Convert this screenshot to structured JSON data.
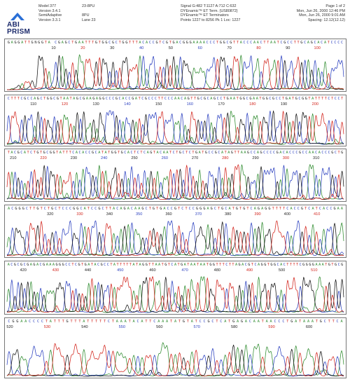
{
  "header": {
    "logo_text_top": "ABI",
    "logo_text_bottom": "PRISM",
    "instrument": {
      "model": "Model 377",
      "version": "Version 3.4.1",
      "analysis": "SemiAdaptive",
      "analysis_version": "Version 3.3.1"
    },
    "sample": {
      "name": "23-8PU",
      "id": "8PU",
      "lane": "Lane 23"
    },
    "signal": {
      "signal": "Signal G:482 T:1127 A:712 C:632",
      "chemistry": "DYEnamic™ ET Term. {US80872}",
      "terminators": "DYEnamic™ ET Terminators",
      "points": "Points 1227 to 8256  Pk 1 Loc: 1227"
    },
    "run": {
      "page": "Page 1 of 2",
      "date1": "Mon, Jun 26, 2000  12:46 PM",
      "date2": "Mon, Jun 26, 2000  9:01 AM",
      "spacing": "Spacing: 12.12(12.12)"
    }
  },
  "colors": {
    "A": "#2e8b2e",
    "C": "#2a3fbf",
    "G": "#111111",
    "T": "#d2241c",
    "frame": "#777777"
  },
  "panels": [
    {
      "sequence": "GAGGATTGNGGTA CGAGCTGAATTTGTGGCGCTGGTTTACACCGTCGTGACGGGAAAACCCTGGCGTTACCCAACTTAATCGCCTTGCAGCACATCCCC",
      "ticks": [
        10,
        20,
        30,
        40,
        50,
        60,
        70,
        80,
        90,
        100
      ],
      "first_tick_offset": 0.13
    },
    {
      "sequence": "CTTTCGCCAGCTGGCGTAATAGCGAAGAGGCCCGCACCGATCGCCCTTCCCAACAGTTGCGCAGCCTGAATGGCGAATGGCGCCTGATGCGGTATTTTCTCCT",
      "ticks": [
        110,
        120,
        130,
        140,
        150,
        160,
        170,
        180,
        190,
        200
      ],
      "first_tick_offset": 0.07
    },
    {
      "sequence": "TACGCATCTGTGCGGTATTTCACACCGCATATGGTGCACTCTCAGTACAATCTGCTCTGATGCCGCATAGTTAAGCCAGCCCCGACACCCGCCAACACCCGCTG",
      "ticks": [
        210,
        220,
        230,
        240,
        250,
        260,
        270,
        280,
        290,
        300,
        310
      ],
      "first_tick_offset": 0.01
    },
    {
      "sequence": "ACGGGCTTGTCTGCTCCCGGCATCCGCTTACAGACAAGCTGTGACCGTCTCCGGGAGCTGCATGTGTCAGAGGTTTTCACCGTCATCACCGAA",
      "ticks": [
        320,
        330,
        340,
        350,
        360,
        370,
        380,
        390,
        400,
        410
      ],
      "first_tick_offset": 0.12
    },
    {
      "sequence": "ACGCGCGAGACGAAAGGGCCTCGTGATACGCCTATTTTTATAGGTTAATGTCATGATAATAATGGTTTCTTAGACGTCAGGTGGCACTTTTCGGGGAAATGTGCG",
      "ticks": [
        420,
        430,
        440,
        450,
        460,
        470,
        480,
        490,
        500,
        510
      ],
      "first_tick_offset": 0.04
    },
    {
      "sequence": "CGGAACCCCTATTTGTTTATTTTTCTAAATACATTCAAATATGTATCCGCTCATGAGACAATAACCCTGATAAATGCTTCA",
      "ticks": [
        520,
        530,
        540,
        550,
        560,
        570,
        580,
        590,
        600
      ],
      "first_tick_offset": 0.0
    }
  ]
}
